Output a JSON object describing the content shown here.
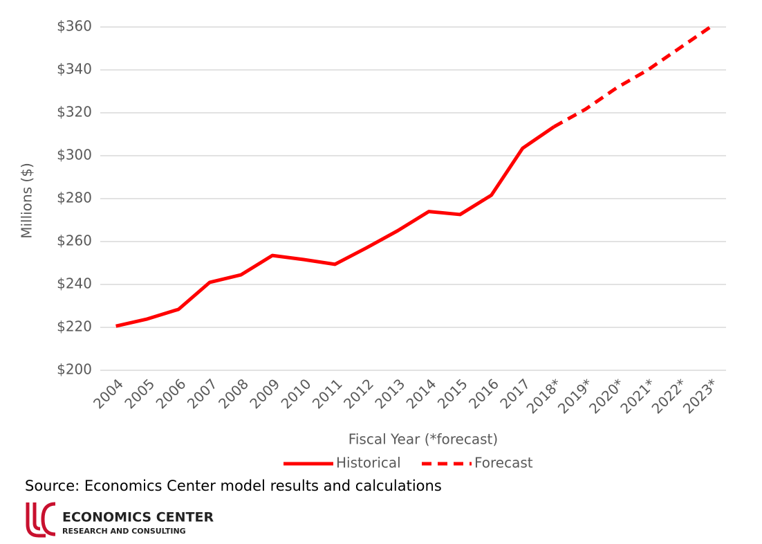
{
  "chart_data": {
    "type": "line",
    "y_label": "Millions ($)",
    "x_label": "Fiscal Year (*forecast)",
    "categories": [
      "2004",
      "2005",
      "2006",
      "2007",
      "2008",
      "2009",
      "2010",
      "2011",
      "2012",
      "2013",
      "2014",
      "2015",
      "2016",
      "2017",
      "2018*",
      "2019*",
      "2020*",
      "2021*",
      "2022*",
      "2023*"
    ],
    "series": [
      {
        "name": "Historical",
        "color": "#ff0000",
        "style": "solid",
        "values": [
          220.6,
          223.9,
          228.4,
          241,
          244.5,
          253.5,
          251.6,
          249.4,
          257,
          265,
          274,
          272.6,
          281.6,
          303.5,
          313.5,
          null,
          null,
          null,
          null,
          null
        ]
      },
      {
        "name": "Forecast",
        "color": "#ff0000",
        "style": "dashed",
        "values": [
          null,
          null,
          null,
          null,
          null,
          null,
          null,
          null,
          null,
          null,
          null,
          null,
          null,
          null,
          313.5,
          321.6,
          331.6,
          340,
          350,
          360
        ]
      }
    ],
    "ylim": [
      200,
      360
    ],
    "yticks": [
      {
        "value": 200,
        "label": "$200"
      },
      {
        "value": 220,
        "label": "$220"
      },
      {
        "value": 240,
        "label": "$240"
      },
      {
        "value": 260,
        "label": "$260"
      },
      {
        "value": 280,
        "label": "$280"
      },
      {
        "value": 300,
        "label": "$300"
      },
      {
        "value": 320,
        "label": "$320"
      },
      {
        "value": 340,
        "label": "$340"
      },
      {
        "value": 360,
        "label": "$360"
      }
    ],
    "grid": true,
    "legend": "bottom",
    "source": "Source: Economics Center model results and calculations",
    "logo": {
      "name": "ECONOMICS CENTER",
      "tagline": "RESEARCH AND CONSULTING"
    }
  }
}
